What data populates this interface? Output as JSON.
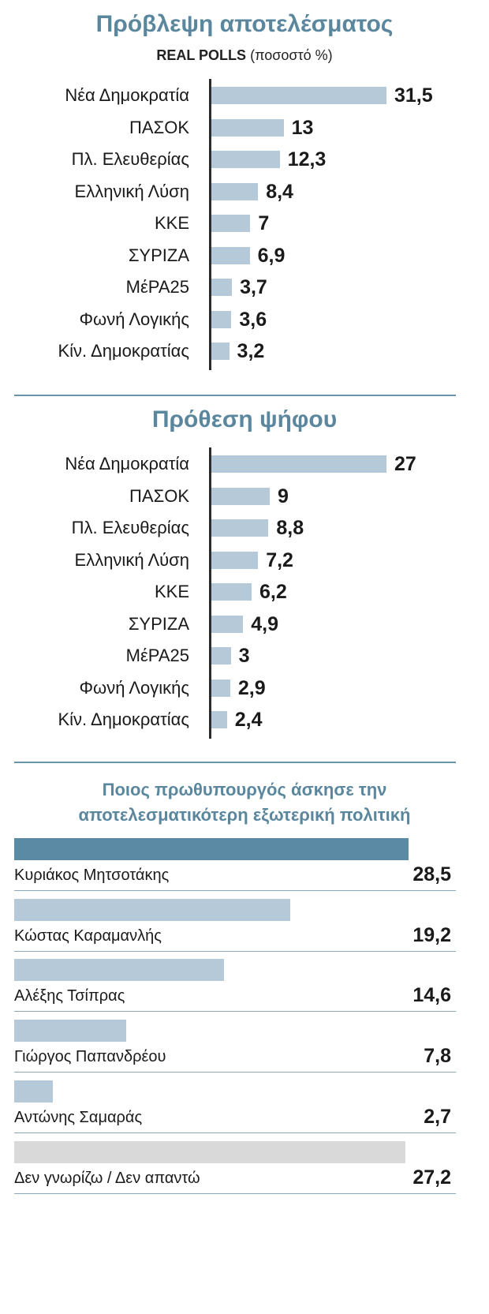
{
  "chart_data": [
    {
      "type": "bar",
      "orientation": "horizontal",
      "title": "Πρόβλεψη αποτελέσματος",
      "subtitle": "REAL POLLS",
      "subtitle_unit": "(ποσοστό %)",
      "categories": [
        "Νέα Δημοκρατία",
        "ΠΑΣΟΚ",
        "Πλ. Ελευθερίας",
        "Ελληνική Λύση",
        "ΚΚΕ",
        "ΣΥΡΙΖΑ",
        "ΜέΡΑ25",
        "Φωνή Λογικής",
        "Κίν. Δημοκρατίας"
      ],
      "values": [
        31.5,
        13,
        12.3,
        8.4,
        7,
        6.9,
        3.7,
        3.6,
        3.2
      ],
      "value_labels": [
        "31,5",
        "13",
        "12,3",
        "8,4",
        "7",
        "6,9",
        "3,7",
        "3,6",
        "3,2"
      ],
      "bar_color": "#b5c9d8",
      "grid": false
    },
    {
      "type": "bar",
      "orientation": "horizontal",
      "title": "Πρόθεση ψήφου",
      "categories": [
        "Νέα Δημοκρατία",
        "ΠΑΣΟΚ",
        "Πλ. Ελευθερίας",
        "Ελληνική Λύση",
        "ΚΚΕ",
        "ΣΥΡΙΖΑ",
        "ΜέΡΑ25",
        "Φωνή Λογικής",
        "Κίν. Δημοκρατίας"
      ],
      "values": [
        27,
        9,
        8.8,
        7.2,
        6.2,
        4.9,
        3,
        2.9,
        2.4
      ],
      "value_labels": [
        "27",
        "9",
        "8,8",
        "7,2",
        "6,2",
        "4,9",
        "3",
        "2,9",
        "2,4"
      ],
      "bar_color": "#b5c9d8",
      "grid": false
    },
    {
      "type": "bar",
      "orientation": "horizontal",
      "title": "Ποιος πρωθυπουργός άσκησε την αποτελεσματικότερη εξωτερική πολιτική",
      "title_lines": [
        "Ποιος πρωθυπουργός άσκησε την",
        "αποτελεσματικότερη εξωτερική πολιτική"
      ],
      "categories": [
        "Κυριάκος Μητσοτάκης",
        "Κώστας Καραμανλής",
        "Αλέξης Τσίπρας",
        "Γιώργος Παπανδρέου",
        "Αντώνης Σαμαράς",
        "Δεν γνωρίζω / Δεν απαντώ"
      ],
      "values": [
        28.5,
        19.2,
        14.6,
        7.8,
        2.7,
        27.2
      ],
      "value_labels": [
        "28,5",
        "19,2",
        "14,6",
        "7,8",
        "2,7",
        "27,2"
      ],
      "colors": {
        "top": "#5b8aa4",
        "default": "#b5c9d8",
        "unknown": "#d9d9d9"
      },
      "grid": false
    }
  ]
}
